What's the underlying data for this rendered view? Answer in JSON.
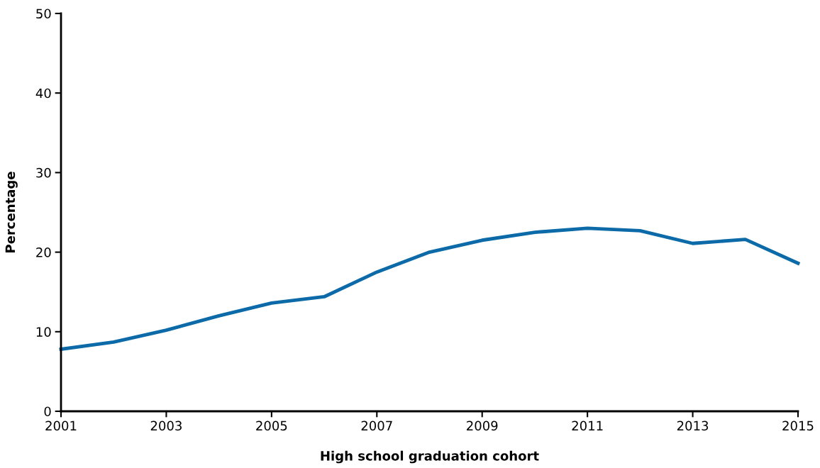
{
  "chart_data": {
    "type": "line",
    "xlabel": "High school graduation cohort",
    "ylabel": "Percentage",
    "x": [
      2001,
      2002,
      2003,
      2004,
      2005,
      2006,
      2007,
      2008,
      2009,
      2010,
      2011,
      2012,
      2013,
      2014,
      2015
    ],
    "series": [
      {
        "color": "#0b6aa7",
        "values": [
          7.8,
          8.7,
          10.2,
          12.0,
          13.6,
          14.4,
          17.5,
          20.0,
          21.5,
          22.5,
          23.0,
          22.7,
          21.1,
          21.6,
          18.6
        ]
      }
    ],
    "xlim": [
      2001,
      2015
    ],
    "xticks": [
      2001,
      2003,
      2005,
      2007,
      2009,
      2011,
      2013,
      2015
    ],
    "ylim": [
      0,
      50
    ],
    "yticks": [
      0,
      10,
      20,
      30,
      40,
      50
    ],
    "grid": false,
    "legend": false,
    "marker": "none",
    "line_style": "solid"
  }
}
